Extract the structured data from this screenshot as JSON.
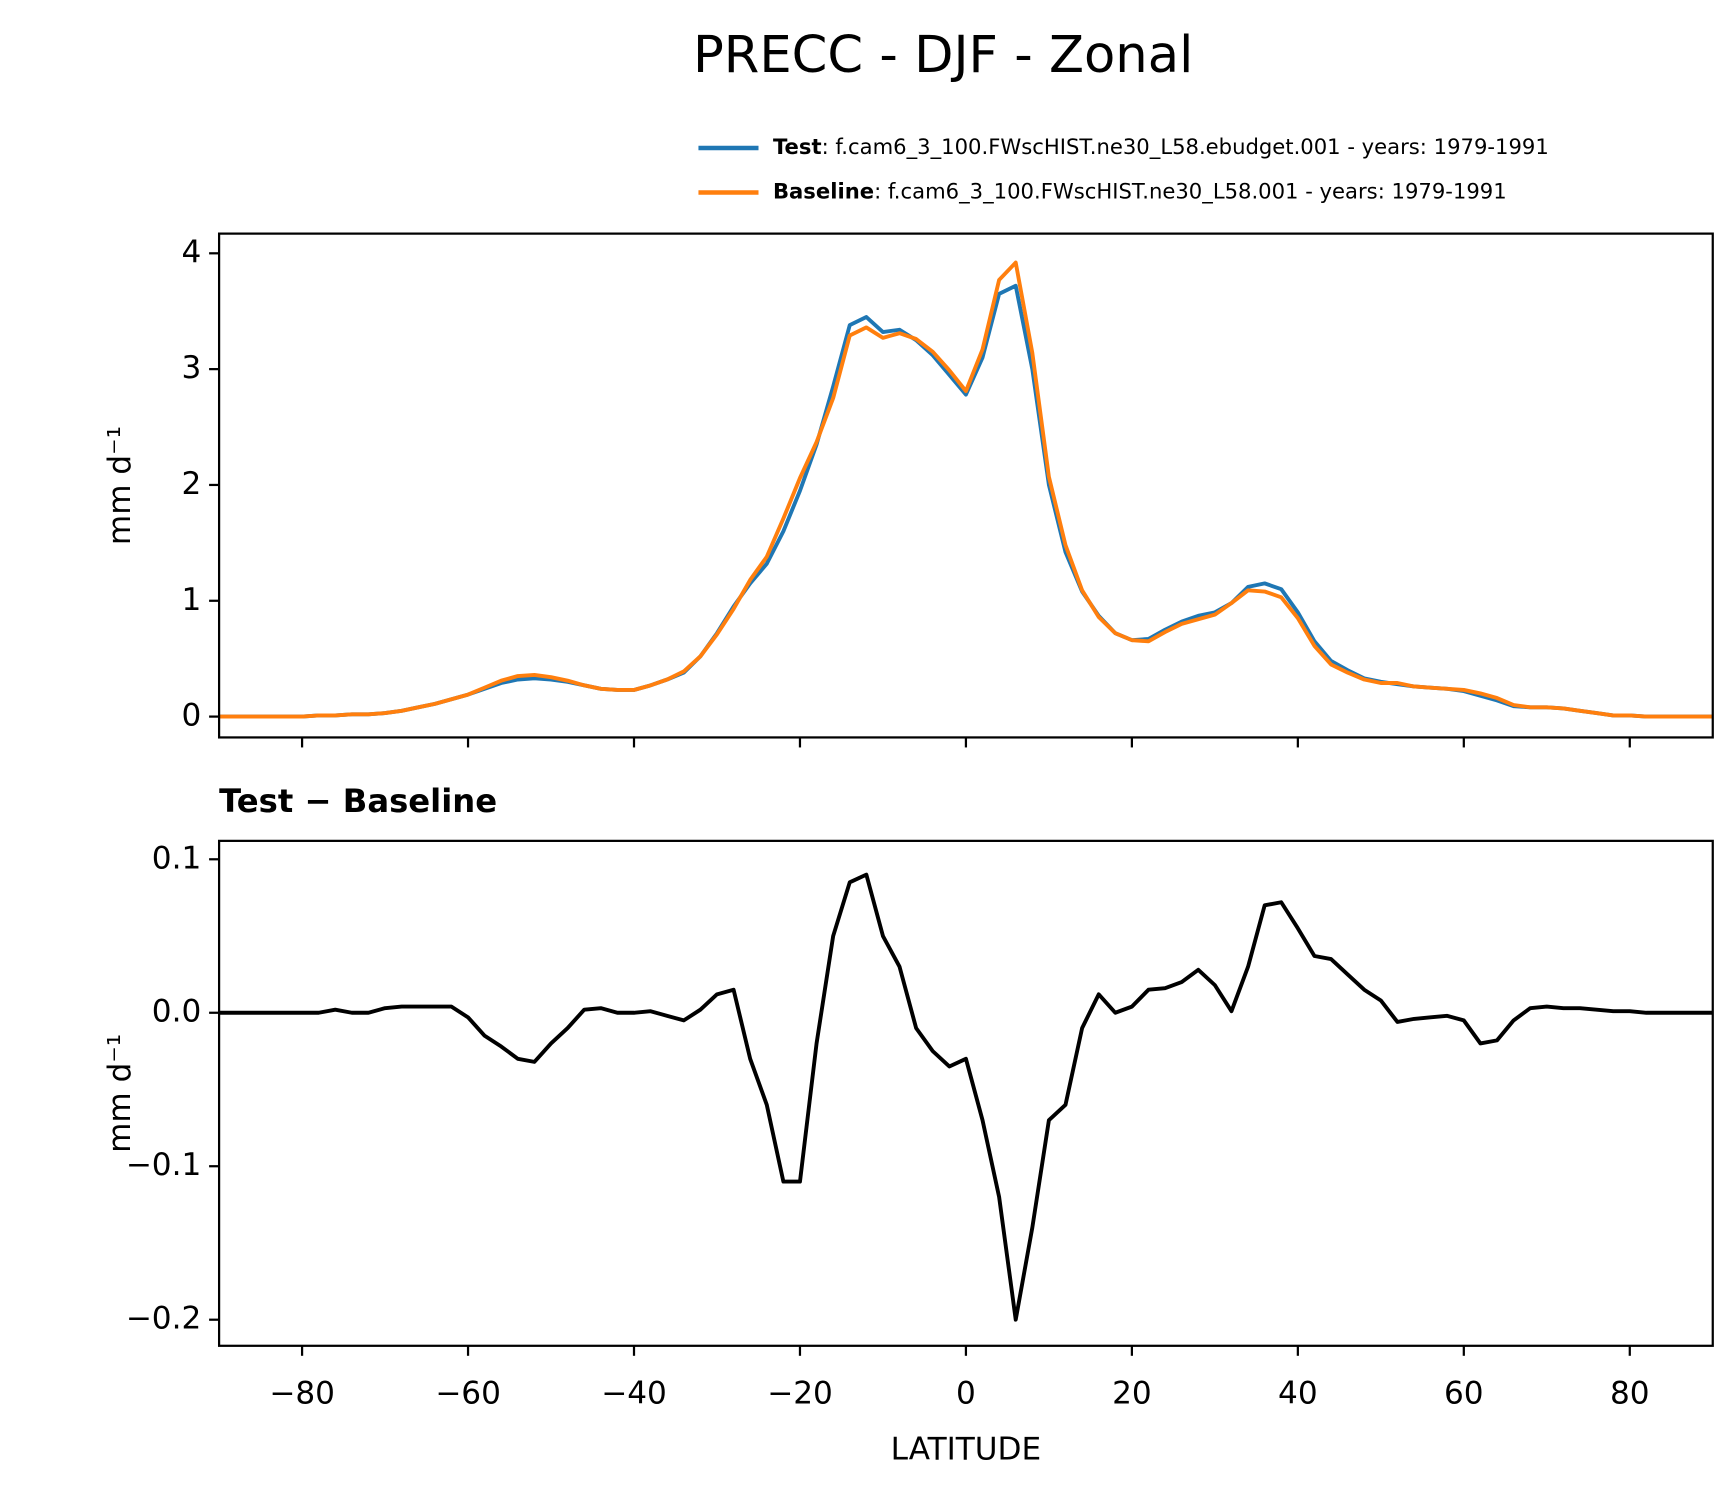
{
  "chart_data": [
    {
      "type": "line",
      "title": "PRECC - DJF - Zonal",
      "ylabel": "mm d⁻¹",
      "x": [
        -90,
        -88,
        -86,
        -84,
        -82,
        -80,
        -78,
        -76,
        -74,
        -72,
        -70,
        -68,
        -66,
        -64,
        -62,
        -60,
        -58,
        -56,
        -54,
        -52,
        -50,
        -48,
        -46,
        -44,
        -42,
        -40,
        -38,
        -36,
        -34,
        -32,
        -30,
        -28,
        -26,
        -24,
        -22,
        -20,
        -18,
        -16,
        -14,
        -12,
        -10,
        -8,
        -6,
        -4,
        -2,
        0,
        2,
        4,
        6,
        8,
        10,
        12,
        14,
        16,
        18,
        20,
        22,
        24,
        26,
        28,
        30,
        32,
        34,
        36,
        38,
        40,
        42,
        44,
        46,
        48,
        50,
        52,
        54,
        56,
        58,
        60,
        62,
        64,
        66,
        68,
        70,
        72,
        74,
        76,
        78,
        80,
        82,
        84,
        86,
        88,
        90
      ],
      "series": [
        {
          "name": "Test",
          "description": ": f.cam6_3_100.FWscHIST.ne30_L58.ebudget.001 - years: 1979-1991",
          "color": "#1f77b4",
          "values": [
            0,
            0,
            0,
            0,
            0,
            0,
            0.01,
            0.01,
            0.02,
            0.02,
            0.03,
            0.05,
            0.08,
            0.11,
            0.15,
            0.19,
            0.24,
            0.29,
            0.32,
            0.33,
            0.32,
            0.3,
            0.27,
            0.24,
            0.23,
            0.23,
            0.27,
            0.32,
            0.38,
            0.52,
            0.72,
            0.95,
            1.15,
            1.32,
            1.6,
            1.95,
            2.35,
            2.85,
            3.38,
            3.45,
            3.32,
            3.34,
            3.25,
            3.12,
            2.95,
            2.78,
            3.1,
            3.65,
            3.72,
            3.0,
            2.0,
            1.42,
            1.08,
            0.87,
            0.72,
            0.66,
            0.67,
            0.75,
            0.82,
            0.87,
            0.9,
            0.98,
            1.12,
            1.15,
            1.1,
            0.9,
            0.65,
            0.48,
            0.4,
            0.33,
            0.3,
            0.28,
            0.26,
            0.25,
            0.24,
            0.22,
            0.18,
            0.14,
            0.09,
            0.08,
            0.08,
            0.07,
            0.05,
            0.03,
            0.01,
            0.01,
            0,
            0,
            0,
            0,
            0
          ]
        },
        {
          "name": "Baseline",
          "description": ": f.cam6_3_100.FWscHIST.ne30_L58.001 - years: 1979-1991",
          "color": "#ff7f0e",
          "values": [
            0,
            0,
            0,
            0,
            0,
            0,
            0.01,
            0.01,
            0.02,
            0.02,
            0.03,
            0.05,
            0.08,
            0.11,
            0.15,
            0.19,
            0.25,
            0.31,
            0.35,
            0.36,
            0.34,
            0.31,
            0.27,
            0.24,
            0.23,
            0.23,
            0.27,
            0.32,
            0.39,
            0.52,
            0.71,
            0.93,
            1.18,
            1.38,
            1.71,
            2.06,
            2.37,
            2.75,
            3.29,
            3.36,
            3.27,
            3.31,
            3.26,
            3.15,
            2.99,
            2.81,
            3.17,
            3.77,
            3.92,
            3.14,
            2.07,
            1.48,
            1.09,
            0.86,
            0.72,
            0.66,
            0.65,
            0.73,
            0.8,
            0.84,
            0.88,
            0.98,
            1.09,
            1.08,
            1.03,
            0.85,
            0.61,
            0.45,
            0.38,
            0.32,
            0.29,
            0.29,
            0.26,
            0.25,
            0.24,
            0.23,
            0.2,
            0.16,
            0.1,
            0.08,
            0.08,
            0.07,
            0.05,
            0.03,
            0.01,
            0.01,
            0,
            0,
            0,
            0,
            0
          ]
        }
      ],
      "xlim": [
        -90,
        90
      ],
      "xticks": [
        -80,
        -60,
        -40,
        -20,
        0,
        20,
        40,
        60,
        80
      ],
      "show_xtick_labels": false,
      "ylim": [
        -0.18,
        4.17
      ],
      "yticks": [
        0,
        1,
        2,
        3,
        4
      ],
      "legend": "upper right"
    },
    {
      "type": "line",
      "title": "Test − Baseline",
      "ylabel": "mm d⁻¹",
      "xlabel": "LATITUDE",
      "x": [
        -90,
        -88,
        -86,
        -84,
        -82,
        -80,
        -78,
        -76,
        -74,
        -72,
        -70,
        -68,
        -66,
        -64,
        -62,
        -60,
        -58,
        -56,
        -54,
        -52,
        -50,
        -48,
        -46,
        -44,
        -42,
        -40,
        -38,
        -36,
        -34,
        -32,
        -30,
        -28,
        -26,
        -24,
        -22,
        -20,
        -18,
        -16,
        -14,
        -12,
        -10,
        -8,
        -6,
        -4,
        -2,
        0,
        2,
        4,
        6,
        8,
        10,
        12,
        14,
        16,
        18,
        20,
        22,
        24,
        26,
        28,
        30,
        32,
        34,
        36,
        38,
        40,
        42,
        44,
        46,
        48,
        50,
        52,
        54,
        56,
        58,
        60,
        62,
        64,
        66,
        68,
        70,
        72,
        74,
        76,
        78,
        80,
        82,
        84,
        86,
        88,
        90
      ],
      "series": [
        {
          "name": "Test − Baseline",
          "color": "#000000",
          "values": [
            0,
            0,
            0,
            0,
            0,
            0,
            0,
            0.002,
            0,
            0,
            0.003,
            0.004,
            0.004,
            0.004,
            0.004,
            -0.003,
            -0.015,
            -0.022,
            -0.03,
            -0.032,
            -0.02,
            -0.01,
            0.002,
            0.003,
            0,
            0,
            0.001,
            -0.002,
            -0.005,
            0.002,
            0.012,
            0.015,
            -0.03,
            -0.06,
            -0.11,
            -0.11,
            -0.02,
            0.05,
            0.085,
            0.09,
            0.05,
            0.03,
            -0.01,
            -0.025,
            -0.035,
            -0.03,
            -0.07,
            -0.12,
            -0.2,
            -0.14,
            -0.07,
            -0.06,
            -0.01,
            0.012,
            0,
            0.004,
            0.015,
            0.016,
            0.02,
            0.028,
            0.018,
            0.001,
            0.03,
            0.07,
            0.072,
            0.055,
            0.037,
            0.035,
            0.025,
            0.015,
            0.008,
            -0.006,
            -0.004,
            -0.003,
            -0.002,
            -0.005,
            -0.02,
            -0.018,
            -0.005,
            0.003,
            0.004,
            0.003,
            0.003,
            0.002,
            0.001,
            0.001,
            0,
            0,
            0,
            0,
            0
          ]
        }
      ],
      "xlim": [
        -90,
        90
      ],
      "xticks": [
        {
          "value": -80,
          "label": "−80"
        },
        {
          "value": -60,
          "label": "−60"
        },
        {
          "value": -40,
          "label": "−40"
        },
        {
          "value": -20,
          "label": "−20"
        },
        0,
        20,
        40,
        60,
        80
      ],
      "show_xtick_labels": true,
      "ylim": [
        -0.217,
        0.112
      ],
      "yticks": [
        {
          "value": 0.1,
          "label": "0.1"
        },
        {
          "value": 0,
          "label": "0.0"
        },
        {
          "value": -0.1,
          "label": "−0.1"
        },
        {
          "value": -0.2,
          "label": "−0.2"
        }
      ]
    }
  ]
}
